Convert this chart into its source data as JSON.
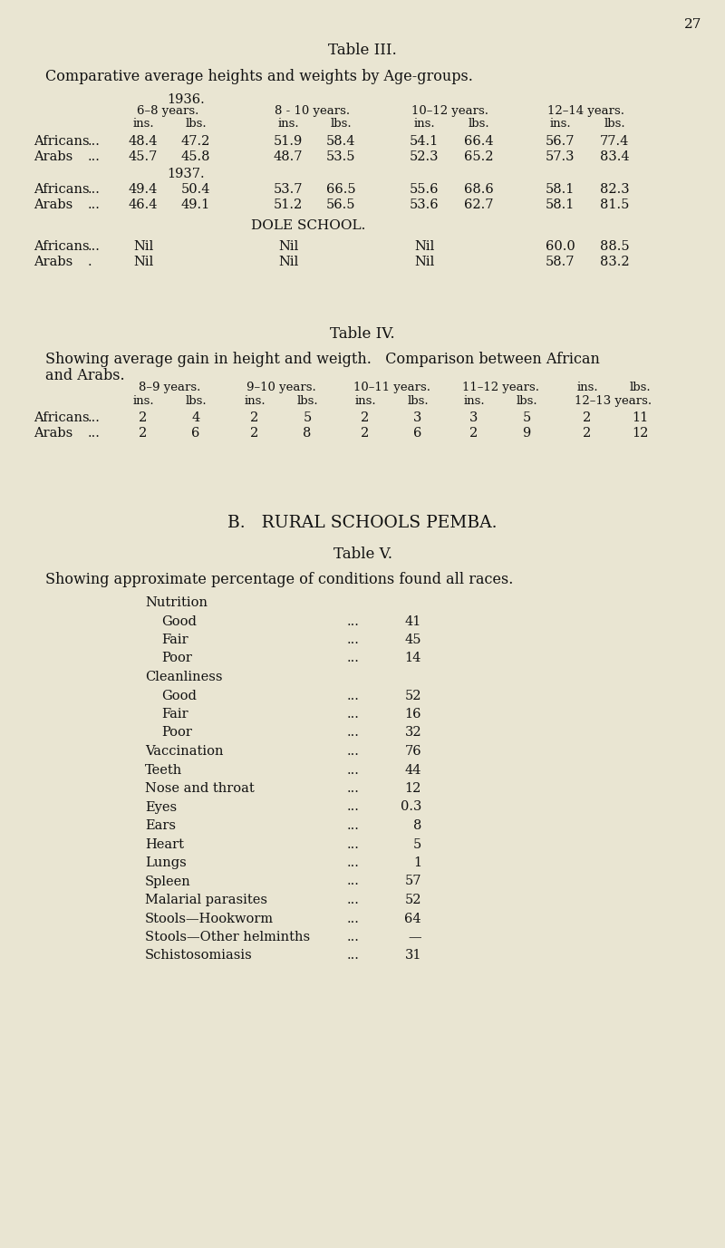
{
  "bg_color": "#e9e5d2",
  "text_color": "#111111",
  "page_number": "27",
  "table3_title": "Table III.",
  "table3_subtitle": "Comparative average heights and weights by Age-groups.",
  "year1936": "1936.",
  "year1937": "1937.",
  "dole_school": "DOLE SCHOOL.",
  "t3_age_headers": [
    "6–8 years.",
    "8 - 10 years.",
    "10–12 years.",
    "12–14 years."
  ],
  "t3_unit_headers": [
    "ins.",
    "lbs.",
    "ins.",
    "lbs.",
    "ins.",
    "lbs.",
    "ins.",
    "lbs."
  ],
  "t3_1936_africans": [
    "48.4",
    "47.2",
    "51.9",
    "58.4",
    "54.1",
    "66.4",
    "56.7",
    "77.4"
  ],
  "t3_1936_arabs": [
    "45.7",
    "45.8",
    "48.7",
    "53.5",
    "52.3",
    "65.2",
    "57.3",
    "83.4"
  ],
  "t3_1937_africans": [
    "49.4",
    "50.4",
    "53.7",
    "66.5",
    "55.6",
    "68.6",
    "58.1",
    "82.3"
  ],
  "t3_1937_arabs": [
    "46.4",
    "49.1",
    "51.2",
    "56.5",
    "53.6",
    "62.7",
    "58.1",
    "81.5"
  ],
  "t3_dole_africans_last": [
    "60.0",
    "88.5"
  ],
  "t3_dole_arabs_last": [
    "58.7",
    "83.2"
  ],
  "table4_title": "Table IV.",
  "table4_line1": "Showing average gain in height and weigth.   Comparison between African",
  "table4_line2": "and Arabs.",
  "t4_age_headers": [
    "8–9 years.",
    "9–10 years.",
    "10–11 years.",
    "11–12 years.",
    "ins.",
    "lbs."
  ],
  "t4_unit_headers": [
    "ins.",
    "lbs.",
    "ins.",
    "lbs.",
    "ins.",
    "lbs.",
    "ins.",
    "lbs.",
    "12–13 years."
  ],
  "t4_africans": [
    "2",
    "4",
    "2",
    "5",
    "2",
    "3",
    "3",
    "5",
    "2",
    "11"
  ],
  "t4_arabs": [
    "2",
    "6",
    "2",
    "8",
    "2",
    "6",
    "2",
    "9",
    "2",
    "12"
  ],
  "section_b": "B.   RURAL SCHOOLS PEMBA.",
  "table5_title": "Table V.",
  "table5_subtitle": "Showing approximate percentage of conditions found all races.",
  "t5_items": [
    [
      "Nutrition",
      "",
      false
    ],
    [
      "Good",
      "41",
      true
    ],
    [
      "Fair",
      "45",
      true
    ],
    [
      "Poor",
      "14",
      true
    ],
    [
      "Cleanliness",
      "",
      false
    ],
    [
      "Good",
      "52",
      true
    ],
    [
      "Fair",
      "16",
      true
    ],
    [
      "Poor",
      "32",
      true
    ],
    [
      "Vaccination",
      "76",
      false
    ],
    [
      "Teeth",
      "44",
      false
    ],
    [
      "Nose and throat",
      "12",
      false
    ],
    [
      "Eyes",
      "0.3",
      false
    ],
    [
      "Ears",
      "8",
      false
    ],
    [
      "Heart",
      "5",
      false
    ],
    [
      "Lungs",
      "1",
      false
    ],
    [
      "Spleen",
      "57",
      false
    ],
    [
      "Malarial parasites",
      "52",
      false
    ],
    [
      "Stools—Hookworm",
      "64",
      false
    ],
    [
      "Stools—Other helminths",
      "—",
      false
    ],
    [
      "Schistosomiasis",
      "31",
      false
    ]
  ]
}
